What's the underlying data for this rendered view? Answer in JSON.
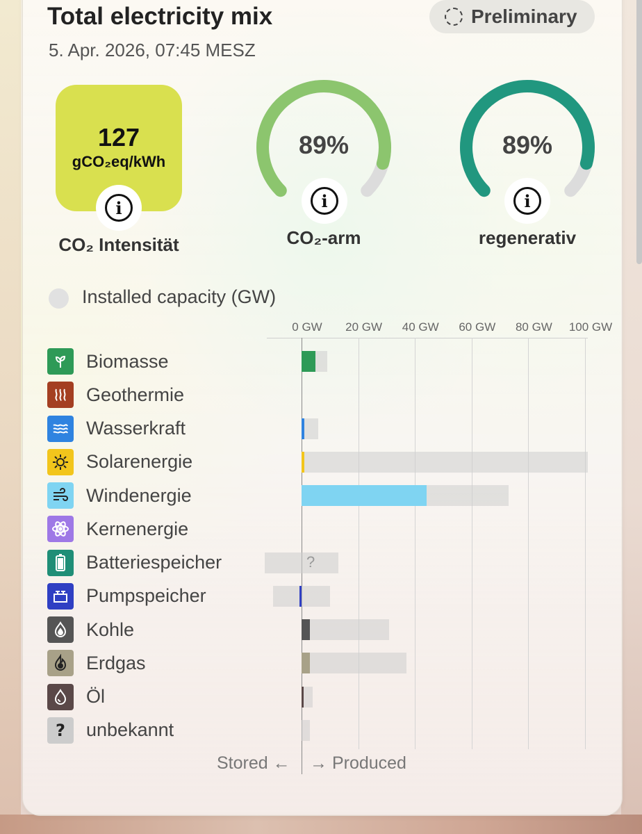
{
  "header": {
    "title": "Total electricity mix",
    "timestamp": "5. Apr. 2026, 07:45 MESZ",
    "status_chip": "Preliminary"
  },
  "metrics": {
    "co2_value": "127",
    "co2_unit": "gCO₂eq/kWh",
    "co2_label": "CO₂ Intensität",
    "low_carbon_value": "89%",
    "low_carbon_fraction": 0.89,
    "low_carbon_label": "CO₂-arm",
    "renewable_value": "89%",
    "renewable_fraction": 0.89,
    "renewable_label": "regenerativ",
    "colors": {
      "co2_box": "#d9e04f",
      "low_carbon": "#8cc56e",
      "renewable": "#21977f",
      "gauge_track": "#dcdcdc"
    }
  },
  "capacity_toggle": {
    "label": "Installed capacity (GW)",
    "checked": false
  },
  "axis": {
    "ticks": [
      "0 GW",
      "20 GW",
      "40 GW",
      "60 GW",
      "80 GW",
      "100 GW"
    ],
    "tick_values": [
      0,
      20,
      40,
      60,
      80,
      100
    ]
  },
  "sources": [
    {
      "name": "Biomasse",
      "icon": "leaf-icon",
      "color": "#2e9a57",
      "produced_gw": 5,
      "capacity_gw": 9
    },
    {
      "name": "Geothermie",
      "icon": "heat-waves-icon",
      "color": "#a43f22",
      "produced_gw": 0,
      "capacity_gw": 0
    },
    {
      "name": "Wasserkraft",
      "icon": "water-waves-icon",
      "color": "#2f83e0",
      "produced_gw": 1,
      "capacity_gw": 6
    },
    {
      "name": "Solarenergie",
      "icon": "sun-icon",
      "color": "#f2c51c",
      "produced_gw": 1,
      "capacity_gw": 101
    },
    {
      "name": "Windenergie",
      "icon": "wind-icon",
      "color": "#7fd4f2",
      "produced_gw": 44,
      "capacity_gw": 73
    },
    {
      "name": "Kernenergie",
      "icon": "atom-icon",
      "color": "#9e78e6",
      "produced_gw": 0,
      "capacity_gw": 0
    },
    {
      "name": "Batteriespeicher",
      "icon": "battery-icon",
      "color": "#1f8e77",
      "produced_gw": 0,
      "capacity_gw": 13,
      "stored_capacity_gw": 13,
      "value_unknown": "?"
    },
    {
      "name": "Pumpspeicher",
      "icon": "pumped-storage-icon",
      "color": "#2f3fc3",
      "produced_gw": 0,
      "stored_gw": 0.5,
      "capacity_gw": 10,
      "stored_capacity_gw": 10
    },
    {
      "name": "Kohle",
      "icon": "coal-icon",
      "color": "#555555",
      "produced_gw": 3,
      "capacity_gw": 31
    },
    {
      "name": "Erdgas",
      "icon": "gas-flame-icon",
      "color": "#a8a188",
      "produced_gw": 3,
      "capacity_gw": 37
    },
    {
      "name": "Öl",
      "icon": "oil-drop-icon",
      "color": "#5a4848",
      "produced_gw": 0.3,
      "capacity_gw": 4
    },
    {
      "name": "unbekannt",
      "icon": "question-icon",
      "color": "#cccccc",
      "produced_gw": 0,
      "capacity_gw": 3
    }
  ],
  "footer": {
    "stored_label": "Stored ←",
    "produced_label": "→ Produced"
  }
}
